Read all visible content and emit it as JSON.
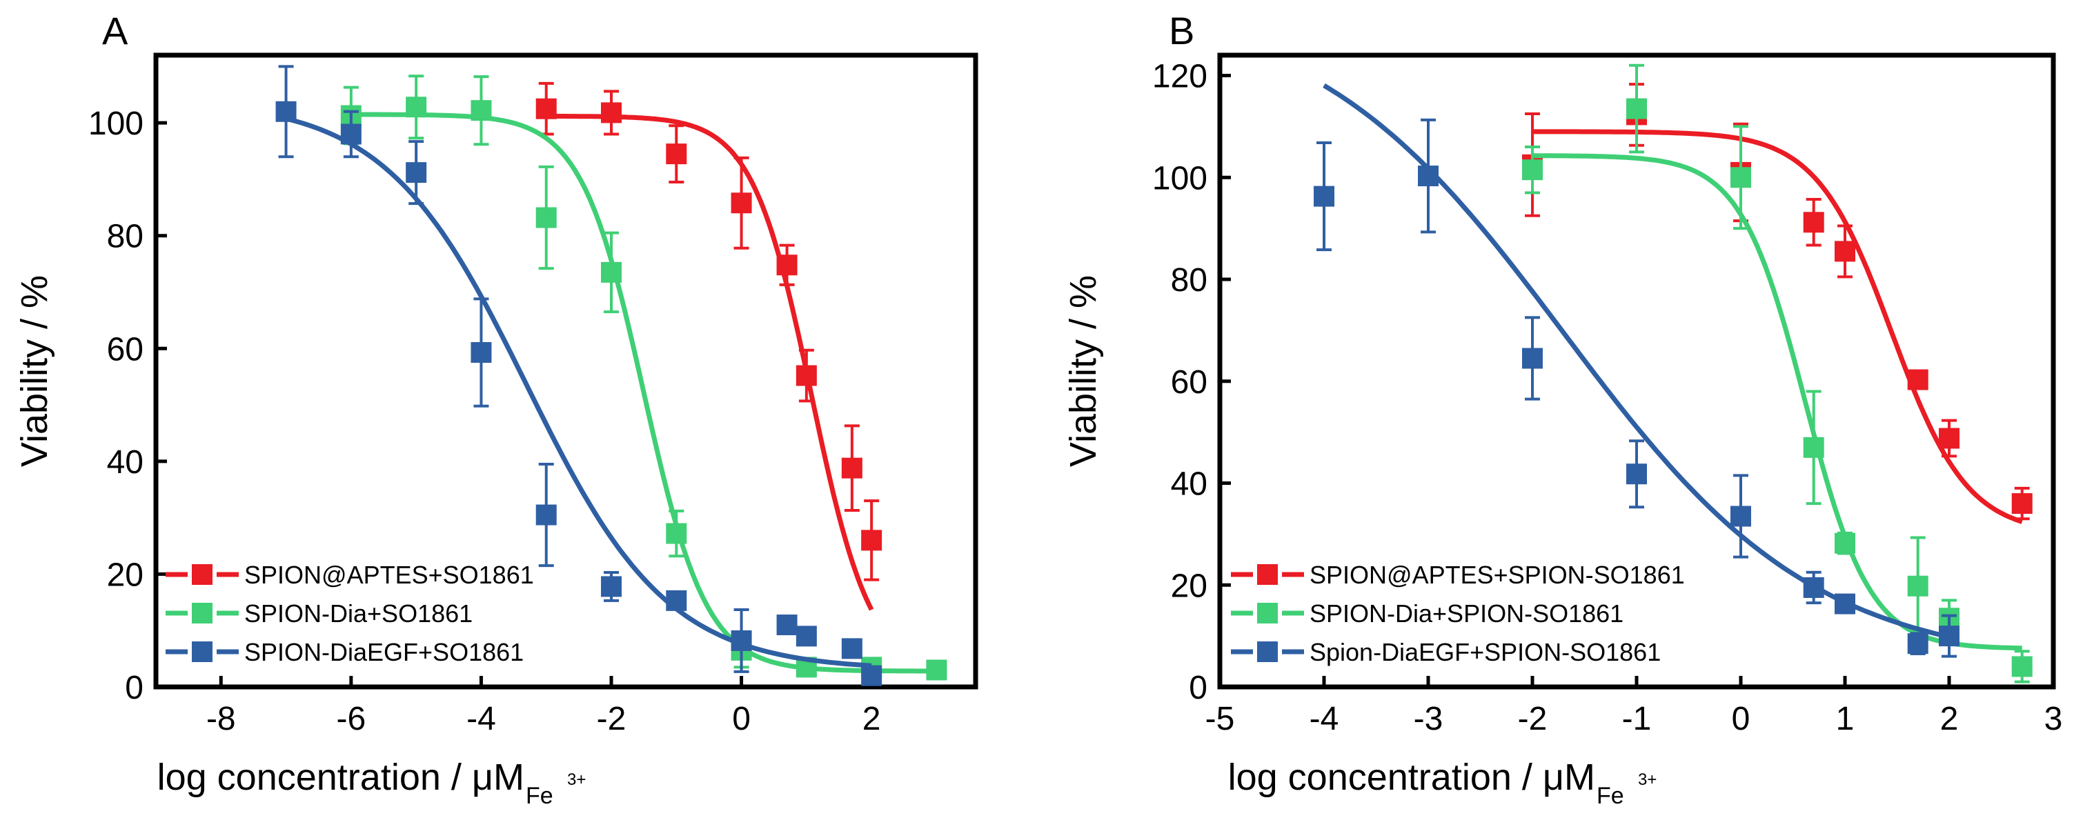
{
  "colors": {
    "red": "#ea1c24",
    "green": "#3fcf75",
    "blue": "#2f5fa3",
    "axis": "#000000"
  },
  "chart_data": [
    {
      "type": "scatter",
      "panel_label": "A",
      "xlabel": "log concentration / μM",
      "xlabel_subscript": "Fe",
      "xlabel_superscript": "3+",
      "ylabel": "Viability / %",
      "xlim": [
        -9,
        3.6
      ],
      "ylim": [
        0,
        112
      ],
      "xticks": [
        -8,
        -6,
        -4,
        -2,
        0,
        2
      ],
      "xtick_labels": [
        "-8",
        "-6",
        "-4",
        "-2",
        "0",
        "2"
      ],
      "yticks": [
        0,
        20,
        40,
        60,
        80,
        100
      ],
      "ytick_labels": [
        "0",
        "20",
        "40",
        "60",
        "80",
        "100"
      ],
      "legend": {
        "position": "bottom-left",
        "entries": [
          "SPION@APTES+SO1861",
          "SPION-Dia+SO1861",
          "SPION-DiaEGF+SO1861"
        ]
      },
      "series": [
        {
          "name": "SPION@APTES+SO1861",
          "color_key": "red",
          "x": [
            -3,
            -2,
            -1,
            0,
            0.7,
            1,
            1.7,
            2
          ],
          "y": [
            102.5,
            101.8,
            94.5,
            85.8,
            74.8,
            55.2,
            38.8,
            26
          ],
          "err": [
            4.5,
            3.8,
            5,
            8,
            3.5,
            4.5,
            7.5,
            7
          ],
          "fit": {
            "top": 101.2,
            "bottom": 2,
            "log_ic50": 1.08,
            "hill": 0.95,
            "x_range": [
              -3,
              2
            ]
          }
        },
        {
          "name": "SPION-Dia+SO1861",
          "color_key": "green",
          "x": [
            -6,
            -5,
            -4,
            -3,
            -2,
            -1,
            0,
            1,
            2,
            3
          ],
          "y": [
            101.3,
            102.8,
            102.2,
            83.2,
            73.5,
            27.2,
            6.5,
            3.5,
            3.5,
            3
          ],
          "err": [
            5,
            5.5,
            6,
            9,
            7,
            4,
            3,
            1.5,
            1.5,
            1
          ],
          "fit": {
            "top": 101.5,
            "bottom": 2.8,
            "log_ic50": -1.5,
            "hill": 0.9,
            "x_range": [
              -6,
              3
            ]
          }
        },
        {
          "name": "SPION-DiaEGF+SO1861",
          "color_key": "blue",
          "x": [
            -7,
            -6,
            -5,
            -4,
            -3,
            -2,
            -1,
            0,
            0.7,
            1,
            1.7,
            2
          ],
          "y": [
            102,
            98,
            91.2,
            59.3,
            30.5,
            17.8,
            15.3,
            8.2,
            11,
            9,
            6.8,
            2
          ],
          "err": [
            8,
            4,
            5.5,
            9.5,
            9,
            2.5,
            1.5,
            5.5,
            1.2,
            1.2,
            1.5,
            1
          ],
          "fit": {
            "top": 104,
            "bottom": 3,
            "log_ic50": -3.3,
            "hill": 0.4,
            "x_range": [
              -7,
              2
            ]
          }
        }
      ]
    },
    {
      "type": "scatter",
      "panel_label": "B",
      "xlabel": "log concentration / μM",
      "xlabel_subscript": "Fe",
      "xlabel_superscript": "3+",
      "ylabel": "Viability / %",
      "xlim": [
        -5,
        3
      ],
      "ylim": [
        0,
        124
      ],
      "xticks": [
        -5,
        -4,
        -3,
        -2,
        -1,
        0,
        1,
        2,
        3
      ],
      "xtick_labels": [
        "-5",
        "-4",
        "-3",
        "-2",
        "-1",
        "0",
        "1",
        "2",
        "3"
      ],
      "yticks": [
        0,
        20,
        40,
        60,
        80,
        100,
        120
      ],
      "ytick_labels": [
        "0",
        "20",
        "40",
        "60",
        "80",
        "100",
        "120"
      ],
      "legend": {
        "position": "bottom-left",
        "entries": [
          "SPION@APTES+SPION-SO1861",
          "SPION-Dia+SPION-SO1861",
          "Spion-DiaEGF+SPION-SO1861"
        ]
      },
      "series": [
        {
          "name": "SPION@APTES+SPION-SO1861",
          "color_key": "red",
          "x": [
            -2,
            -1,
            0,
            0.7,
            1,
            1.7,
            2,
            2.7
          ],
          "y": [
            102.5,
            112.3,
            101,
            91.2,
            85.5,
            60.3,
            48.8,
            36
          ],
          "err": [
            10,
            6,
            9.5,
            4.5,
            5,
            1.5,
            3.5,
            3
          ],
          "fit": {
            "top": 109,
            "bottom": 30,
            "log_ic50": 1.45,
            "hill": 1.2,
            "x_range": [
              -2,
              2.7
            ]
          }
        },
        {
          "name": "SPION-Dia+SPION-SO1861",
          "color_key": "green",
          "x": [
            -2,
            -1,
            0,
            0.7,
            1,
            1.7,
            2,
            2.7
          ],
          "y": [
            101.5,
            113.5,
            100,
            47,
            28.2,
            19.8,
            13.5,
            4
          ],
          "err": [
            4.5,
            8.5,
            10,
            11,
            2,
            9.5,
            3.5,
            3
          ],
          "fit": {
            "top": 104.3,
            "bottom": 7.5,
            "log_ic50": 0.62,
            "hill": 1.4,
            "x_range": [
              -2,
              2.7
            ]
          }
        },
        {
          "name": "Spion-DiaEGF+SPION-SO1861",
          "color_key": "blue",
          "x": [
            -4,
            -3,
            -2,
            -1,
            0,
            0.7,
            1,
            1.7,
            2
          ],
          "y": [
            96.3,
            100.3,
            64.5,
            41.8,
            33.5,
            19.5,
            16.3,
            8.5,
            10
          ],
          "err": [
            10.5,
            11,
            8,
            6.5,
            8,
            3,
            1.2,
            2,
            4
          ],
          "fit": {
            "top": 135,
            "bottom": 4,
            "log_ic50": -1.7,
            "hill": 0.36,
            "x_range": [
              -4,
              2
            ]
          }
        }
      ]
    }
  ]
}
